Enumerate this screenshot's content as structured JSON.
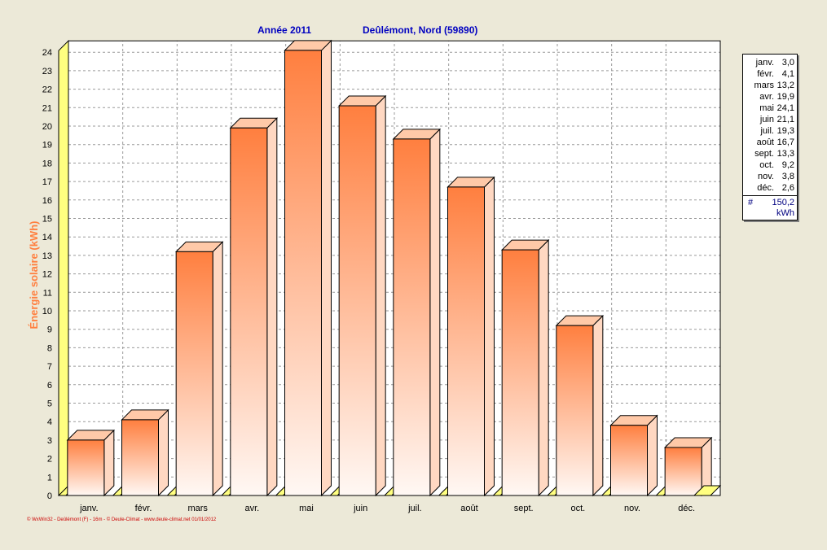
{
  "header": {
    "year": "Année  2011",
    "location": "Deûlémont, Nord (59890)"
  },
  "footer": {
    "credit": "© WxWin32 - Deûlémont (F) - 16m - © Deule-Climat - www.deule-climat.net 01/01/2012"
  },
  "legend": {
    "total_symbol": "#",
    "total": "150,2",
    "unit": "kWh",
    "entries": [
      {
        "month": "janv.",
        "value": "3,0"
      },
      {
        "month": "févr.",
        "value": "4,1"
      },
      {
        "month": "mars",
        "value": "13,2"
      },
      {
        "month": "avr.",
        "value": "19,9"
      },
      {
        "month": "mai",
        "value": "24,1"
      },
      {
        "month": "juin",
        "value": "21,1"
      },
      {
        "month": "juil.",
        "value": "19,3"
      },
      {
        "month": "août",
        "value": "16,7"
      },
      {
        "month": "sept.",
        "value": "13,3"
      },
      {
        "month": "oct.",
        "value": "9,2"
      },
      {
        "month": "nov.",
        "value": "3,8"
      },
      {
        "month": "déc.",
        "value": "2,6"
      }
    ]
  },
  "colors": {
    "bar_top": "#ff7f3f",
    "bar_bottom": "#fff8f4",
    "bar_side": "#ffd8c2",
    "bar_cap": "#ffc9a8",
    "axis_wall": "#ffff80",
    "title": "#0000c0",
    "ylabel": "#ff7f3f",
    "credit": "#cc0000"
  },
  "chart_data": {
    "type": "bar",
    "title": "",
    "xlabel": "",
    "ylabel": "Énergie solaire  (kWh)",
    "ylim": [
      0,
      24
    ],
    "yticks": [
      0,
      1,
      2,
      3,
      4,
      5,
      6,
      7,
      8,
      9,
      10,
      11,
      12,
      13,
      14,
      15,
      16,
      17,
      18,
      19,
      20,
      21,
      22,
      23,
      24
    ],
    "grid": true,
    "legend_position": "right",
    "categories": [
      "janv.",
      "févr.",
      "mars",
      "avr.",
      "mai",
      "juin",
      "juil.",
      "août",
      "sept.",
      "oct.",
      "nov.",
      "déc."
    ],
    "values": [
      3.0,
      4.1,
      13.2,
      19.9,
      24.1,
      21.1,
      19.3,
      16.7,
      13.3,
      9.2,
      3.8,
      2.6
    ]
  }
}
